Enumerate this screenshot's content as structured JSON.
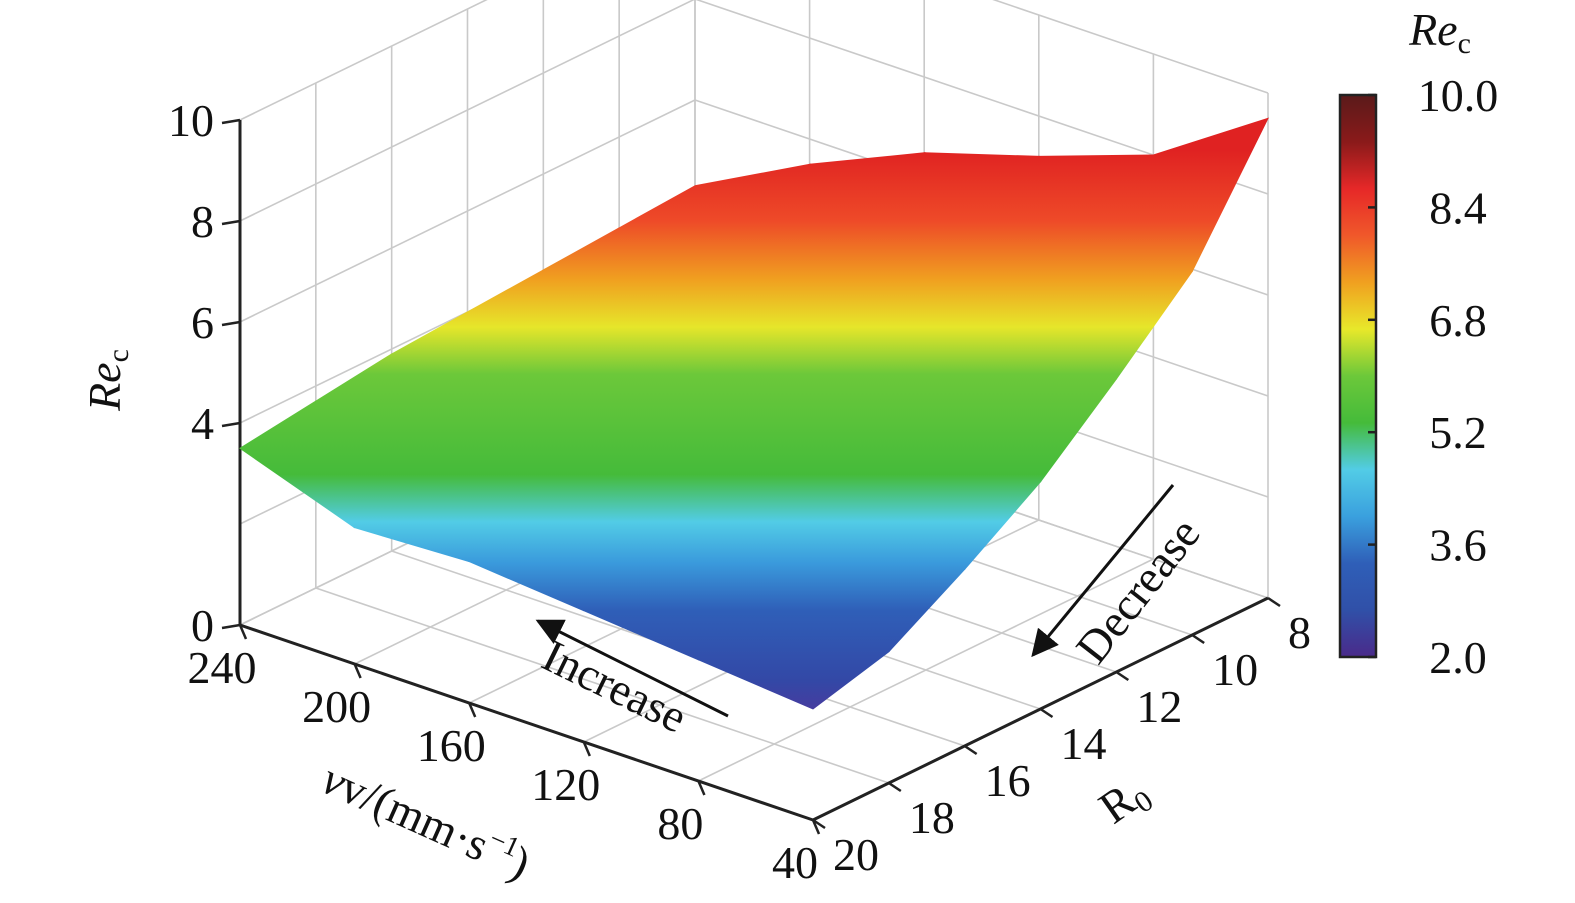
{
  "chart_data": {
    "type": "surface",
    "z_axis": {
      "label": "Re",
      "label_sub": "c",
      "ticks": [
        "0",
        "4",
        "6",
        "8",
        "10"
      ]
    },
    "x_axis": {
      "label_main": "v/(mm·s",
      "label_sup": "−1",
      "label_end": ")",
      "ticks": [
        "240",
        "200",
        "160",
        "120",
        "80",
        "40"
      ],
      "values": [
        240,
        200,
        160,
        120,
        80,
        40
      ]
    },
    "y_axis": {
      "label": "R",
      "label_sub": "0",
      "ticks": [
        "8",
        "10",
        "12",
        "14",
        "16",
        "18",
        "20"
      ],
      "values": [
        8,
        10,
        12,
        14,
        16,
        18,
        20
      ]
    },
    "colorbar": {
      "title": "Re",
      "title_sub": "c",
      "ticks": [
        "10.0",
        "8.4",
        "6.8",
        "5.2",
        "3.6",
        "2.0"
      ],
      "stops": [
        "#4a2a8a",
        "#3050a8",
        "#2f5fb8",
        "#3aa0de",
        "#52cce6",
        "#45bb3a",
        "#6cc83a",
        "#e8e82a",
        "#f0a020",
        "#f0582a",
        "#e62828",
        "#8a1a1a",
        "#5a1a1a"
      ]
    },
    "surface_z": {
      "note_rows": "rows = velocity 240..40, cols = R0 8..20",
      "values": [
        [
          4.3,
          4.2,
          4.1,
          4.0,
          3.9,
          3.7,
          3.5
        ],
        [
          5.5,
          4.9,
          4.3,
          3.6,
          3.2,
          2.9,
          2.7
        ],
        [
          6.5,
          5.8,
          4.9,
          3.9,
          3.3,
          3.0,
          2.8
        ],
        [
          7.2,
          6.3,
          5.2,
          4.1,
          3.3,
          2.9,
          2.6
        ],
        [
          8.0,
          6.9,
          5.6,
          4.3,
          3.4,
          2.8,
          2.4
        ],
        [
          9.5,
          7.2,
          5.8,
          4.5,
          3.5,
          2.6,
          2.2
        ]
      ]
    },
    "annotations": [
      {
        "id": "increase",
        "text": "Increase"
      },
      {
        "id": "decrease",
        "text": "Decrease"
      }
    ]
  }
}
